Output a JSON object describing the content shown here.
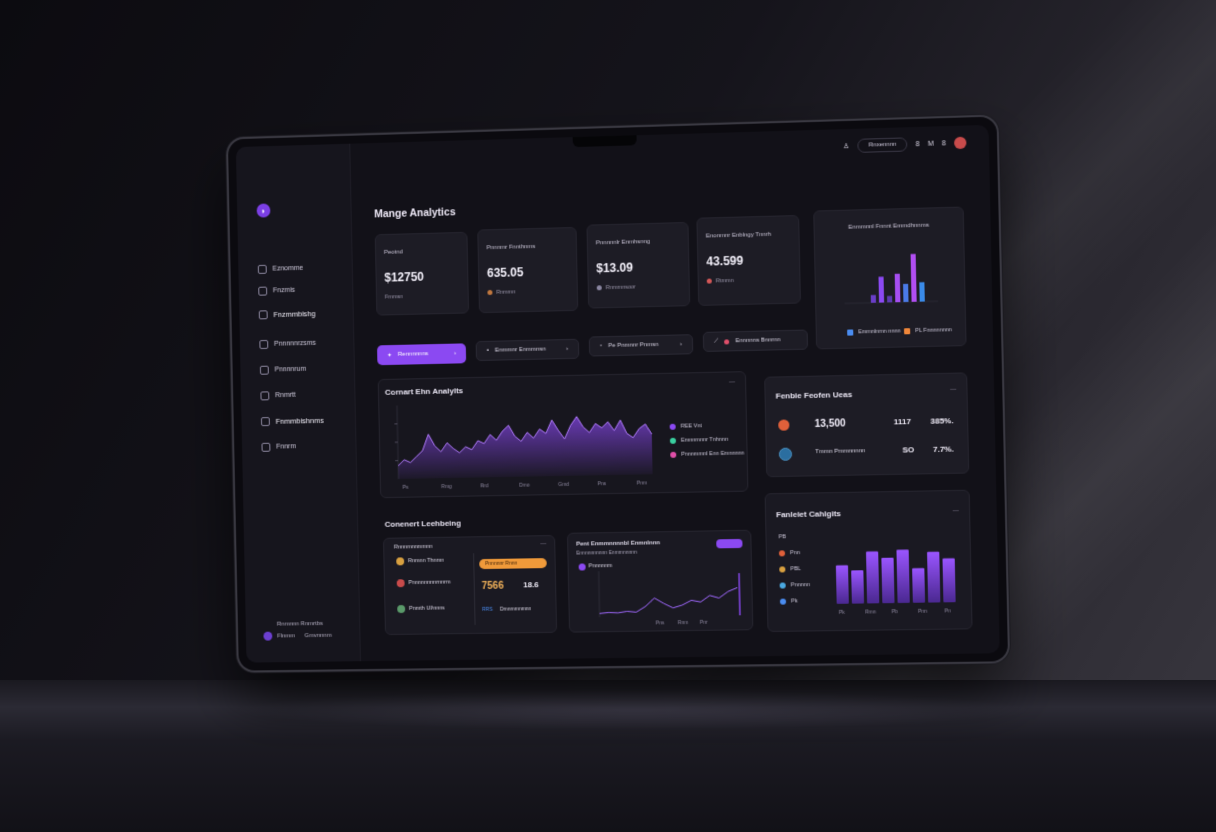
{
  "app": {
    "title": "Mange Analytics"
  },
  "header": {
    "search_label": "Rnxennnn",
    "search_badge": "8",
    "icon_labels": [
      "M",
      "8"
    ]
  },
  "sidebar": {
    "items": [
      {
        "label": "Eznomme"
      },
      {
        "label": "Fnzmis"
      },
      {
        "label": "Fnzmmbishg"
      },
      {
        "label": "Pnnnnnrzsms"
      },
      {
        "label": "Pnnnnrum"
      },
      {
        "label": "Rnmrtt"
      },
      {
        "label": "Fnmmbishnms"
      },
      {
        "label": "Fnnrm"
      }
    ],
    "user": {
      "line1": "Rnmnnn Rnmrtbs",
      "line2": "Flnmm",
      "line3": "Gmvnnnm"
    }
  },
  "kpis": [
    {
      "label": "Peotnd",
      "value": "$12750",
      "sub": "Fmmsn"
    },
    {
      "label": "Pnnnmr Fnnthnms",
      "value": "635.05",
      "sub": "Rnmmn"
    },
    {
      "label": "Pnnnnnlr Enmhsnng",
      "value": "$13.09",
      "sub": "Rnmmnsoor"
    },
    {
      "label": "Enonmnr Enblngy Tnnrh",
      "value": "43.599",
      "sub": "Rtmmn"
    }
  ],
  "mini_chart": {
    "title": "Enmmnnl Fnnnt Emmdhnnms",
    "legend": [
      "Emmnlnmn nnnn",
      "PL Fnnnnnnnn"
    ]
  },
  "actions": [
    {
      "label": "Rennnnnns"
    },
    {
      "label": "Enmmnr Enmmnsn"
    },
    {
      "label": "Pe Pnmnnr Pnmsn"
    },
    {
      "label": "Ennnnns Bnnrnn"
    }
  ],
  "main_chart": {
    "title": "Cornart Ehn Analylts",
    "legend": [
      {
        "label": "REE Vnt",
        "color": "#8b49f2"
      },
      {
        "label": "Emnnmnnr Tnhnnn",
        "color": "#3ad0a0"
      },
      {
        "label": "Pnnnmmnl Enn Emnnnnn",
        "color": "#e04fa8"
      }
    ],
    "x_ticks": [
      "Ps",
      "Rmg",
      "Rrd",
      "Dmo",
      "Gmd",
      "Pns",
      "Pnm"
    ]
  },
  "chart_data": [
    {
      "type": "area",
      "title": "Cornart Ehn Analylts",
      "series": [
        {
          "name": "REE Vnt",
          "values": [
            18,
            26,
            22,
            30,
            38,
            60,
            44,
            36,
            48,
            40,
            34,
            42,
            38,
            50,
            46,
            58,
            50,
            62,
            70,
            55,
            48,
            60,
            52,
            64,
            58,
            76,
            62,
            50,
            68,
            80,
            66,
            58,
            70,
            64,
            72,
            60,
            74,
            56,
            50,
            62,
            68,
            54
          ]
        }
      ],
      "ylim": [
        0,
        100
      ]
    },
    {
      "type": "bar",
      "title": "Enmmnnl Fnnnt Emmdhnnms",
      "values": [
        12,
        40,
        10,
        44,
        28,
        74,
        30
      ],
      "ylim": [
        0,
        100
      ]
    },
    {
      "type": "bar",
      "title": "Fanleiet Cahlgits",
      "values": [
        58,
        50,
        78,
        68,
        80,
        52,
        76,
        66
      ],
      "x_ticks": [
        "Pk",
        "Rmn",
        "Pb",
        "Pnn",
        "Pn"
      ],
      "ylim": [
        0,
        100
      ]
    },
    {
      "type": "line",
      "title": "Pent Enmmnnnnbl Enmnlnnn",
      "values": [
        8,
        10,
        9,
        12,
        10,
        22,
        40,
        28,
        18,
        24,
        34,
        30,
        44,
        38,
        52,
        60
      ],
      "x_ticks": [
        "Pns",
        "Rnm",
        "Pnr"
      ],
      "ylim": [
        0,
        100
      ]
    }
  ],
  "right_panel": {
    "title": "Fenbie Feofen Ueas",
    "rows": [
      {
        "name": "",
        "v1": "13,500",
        "v2": "1117",
        "v3": "385%."
      },
      {
        "name": "Tmmn Pmmnnnnn",
        "v1": "",
        "v2": "SO",
        "v3": "7.7%."
      }
    ]
  },
  "bottom_left": {
    "title": "Conenert Leehbeing",
    "header": "Rnnnmnnmmnn",
    "rows": [
      {
        "label": "Rnmnn Thnmn"
      },
      {
        "label": "Pnnnnnnnnrnnrm"
      },
      {
        "label": "Pnmth Ul/nnns"
      }
    ],
    "orange_label": "Pnnnnnr Rnnn",
    "value": "7566",
    "value2": "18.6",
    "row2a": "RRS",
    "row2b": "Dmnmmnmnn"
  },
  "bottom_mid": {
    "title": "Pent Enmmnnnnbl Enmnlnnn",
    "subtitle": "Ennnnnnnnnn Enmmnnnnn",
    "series_label": "Pnnnnnm"
  },
  "bottom_right": {
    "title": "Fanleiet Cahlgits",
    "labels": [
      "PB",
      "Pnn",
      "PBL",
      "Pnnnnn",
      "Pk"
    ]
  }
}
